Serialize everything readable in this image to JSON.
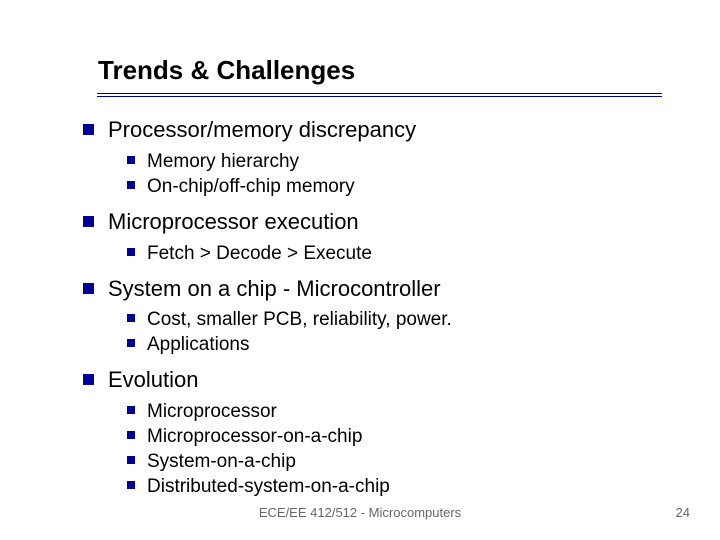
{
  "title": "Trends & Challenges",
  "colors": {
    "bullet": "#000099",
    "underline": "#000099",
    "text": "#000000",
    "footer": "#666666",
    "background": "#ffffff"
  },
  "typography": {
    "title_font_size": 26,
    "title_font_weight": "bold",
    "lvl1_font_size": 22,
    "lvl2_font_size": 19,
    "footer_font_size": 13,
    "font_family": "Verdana, Arial, sans-serif"
  },
  "bullets": {
    "lvl1_size": 11,
    "lvl2_size": 8,
    "shape": "square"
  },
  "items": [
    {
      "text": "Processor/memory discrepancy",
      "sub": [
        {
          "text": "Memory hierarchy"
        },
        {
          "text": "On-chip/off-chip memory"
        }
      ]
    },
    {
      "text": "Microprocessor execution",
      "sub": [
        {
          "text": "Fetch > Decode > Execute"
        }
      ]
    },
    {
      "text": "System on a chip - Microcontroller",
      "sub": [
        {
          "text": "Cost, smaller PCB, reliability, power."
        },
        {
          "text": "Applications"
        }
      ]
    },
    {
      "text": "Evolution",
      "sub": [
        {
          "text": "Microprocessor"
        },
        {
          "text": "Microprocessor-on-a-chip"
        },
        {
          "text": "System-on-a-chip"
        },
        {
          "text": "Distributed-system-on-a-chip"
        }
      ]
    }
  ],
  "footer": {
    "center": "ECE/EE 412/512 - Microcomputers",
    "page": "24"
  }
}
